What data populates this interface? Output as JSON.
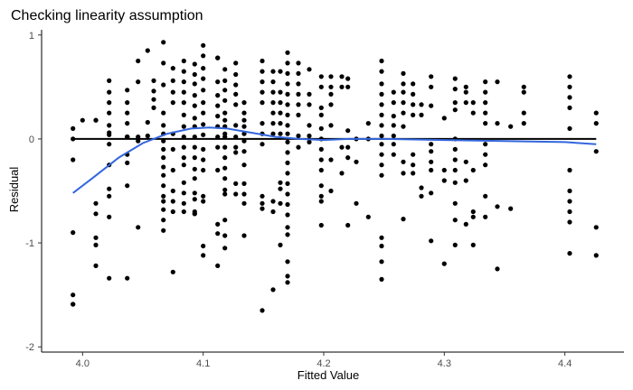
{
  "chart_data": {
    "type": "scatter",
    "title": "Checking linearity assumption",
    "xlabel": "Fitted Value",
    "ylabel": "Residual",
    "xlim": [
      3.966,
      4.449
    ],
    "ylim": [
      -2.05,
      1.05
    ],
    "xticks": [
      {
        "value": 4.0,
        "label": "4.0"
      },
      {
        "value": 4.1,
        "label": "4.1"
      },
      {
        "value": 4.2,
        "label": "4.2"
      },
      {
        "value": 4.3,
        "label": "4.3"
      },
      {
        "value": 4.4,
        "label": "4.4"
      }
    ],
    "yticks": [
      {
        "value": 1,
        "label": "1"
      },
      {
        "value": 0,
        "label": "0"
      },
      {
        "value": -1,
        "label": "-1"
      },
      {
        "value": -2,
        "label": "-2"
      }
    ],
    "grid": false,
    "reference_line": {
      "y": 0,
      "color": "#000000"
    },
    "smooth": {
      "color": "#3366dd",
      "points": [
        [
          3.992,
          -0.52
        ],
        [
          4.01,
          -0.36
        ],
        [
          4.03,
          -0.18
        ],
        [
          4.05,
          -0.04
        ],
        [
          4.07,
          0.05
        ],
        [
          4.09,
          0.1
        ],
        [
          4.105,
          0.11
        ],
        [
          4.12,
          0.1
        ],
        [
          4.14,
          0.06
        ],
        [
          4.16,
          0.02
        ],
        [
          4.18,
          0.0
        ],
        [
          4.2,
          -0.01
        ],
        [
          4.22,
          0.0
        ],
        [
          4.25,
          0.0
        ],
        [
          4.3,
          -0.01
        ],
        [
          4.35,
          -0.02
        ],
        [
          4.4,
          -0.03
        ],
        [
          4.426,
          -0.05
        ]
      ]
    },
    "x": [
      3.992,
      3.992,
      3.992,
      3.992,
      3.992,
      3.992,
      3.992,
      4.0,
      4.011,
      4.011,
      4.011,
      4.011,
      4.011,
      4.011,
      4.011,
      4.022,
      4.022,
      4.022,
      4.022,
      4.022,
      4.022,
      4.022,
      4.022,
      4.022,
      4.022,
      4.022,
      4.022,
      4.022,
      4.037,
      4.037,
      4.037,
      4.037,
      4.037,
      4.037,
      4.037,
      4.037,
      4.037,
      4.037,
      4.037,
      4.037,
      4.037,
      4.046,
      4.046,
      4.046,
      4.046,
      4.046,
      4.054,
      4.054,
      4.054,
      4.059,
      4.059,
      4.059,
      4.059,
      4.067,
      4.067,
      4.067,
      4.067,
      4.067,
      4.067,
      4.067,
      4.067,
      4.067,
      4.067,
      4.067,
      4.067,
      4.067,
      4.067,
      4.067,
      4.067,
      4.067,
      4.075,
      4.075,
      4.075,
      4.075,
      4.075,
      4.075,
      4.075,
      4.075,
      4.075,
      4.075,
      4.075,
      4.084,
      4.084,
      4.084,
      4.084,
      4.084,
      4.084,
      4.084,
      4.084,
      4.084,
      4.084,
      4.084,
      4.084,
      4.084,
      4.084,
      4.084,
      4.093,
      4.093,
      4.093,
      4.093,
      4.093,
      4.093,
      4.093,
      4.093,
      4.093,
      4.093,
      4.093,
      4.093,
      4.093,
      4.093,
      4.093,
      4.093,
      4.093,
      4.1,
      4.1,
      4.1,
      4.1,
      4.1,
      4.1,
      4.1,
      4.1,
      4.1,
      4.1,
      4.1,
      4.1,
      4.1,
      4.1,
      4.1,
      4.1,
      4.112,
      4.112,
      4.112,
      4.112,
      4.112,
      4.112,
      4.112,
      4.112,
      4.112,
      4.112,
      4.112,
      4.112,
      4.112,
      4.118,
      4.118,
      4.118,
      4.118,
      4.118,
      4.118,
      4.118,
      4.118,
      4.118,
      4.118,
      4.118,
      4.118,
      4.118,
      4.118,
      4.118,
      4.118,
      4.118,
      4.118,
      4.127,
      4.127,
      4.127,
      4.127,
      4.127,
      4.127,
      4.127,
      4.127,
      4.127,
      4.127,
      4.127,
      4.134,
      4.134,
      4.134,
      4.134,
      4.134,
      4.134,
      4.134,
      4.134,
      4.134,
      4.134,
      4.134,
      4.134,
      4.149,
      4.149,
      4.149,
      4.149,
      4.149,
      4.149,
      4.149,
      4.149,
      4.149,
      4.149,
      4.149,
      4.149,
      4.158,
      4.158,
      4.158,
      4.158,
      4.158,
      4.158,
      4.158,
      4.158,
      4.158,
      4.158,
      4.164,
      4.164,
      4.164,
      4.164,
      4.164,
      4.164,
      4.164,
      4.164,
      4.164,
      4.164,
      4.17,
      4.17,
      4.17,
      4.17,
      4.17,
      4.17,
      4.17,
      4.17,
      4.17,
      4.17,
      4.17,
      4.17,
      4.17,
      4.17,
      4.17,
      4.17,
      4.17,
      4.17,
      4.17,
      4.17,
      4.17,
      4.17,
      4.179,
      4.179,
      4.179,
      4.179,
      4.179,
      4.179,
      4.179,
      4.179,
      4.188,
      4.188,
      4.188,
      4.188,
      4.188,
      4.188,
      4.198,
      4.198,
      4.198,
      4.198,
      4.198,
      4.198,
      4.198,
      4.198,
      4.198,
      4.198,
      4.198,
      4.198,
      4.198,
      4.206,
      4.206,
      4.206,
      4.206,
      4.206,
      4.206,
      4.206,
      4.215,
      4.215,
      4.215,
      4.215,
      4.22,
      4.22,
      4.22,
      4.22,
      4.22,
      4.22,
      4.227,
      4.227,
      4.227,
      4.237,
      4.237,
      4.237,
      4.248,
      4.248,
      4.248,
      4.248,
      4.248,
      4.248,
      4.248,
      4.248,
      4.248,
      4.248,
      4.248,
      4.248,
      4.248,
      4.248,
      4.248,
      4.248,
      4.258,
      4.258,
      4.258,
      4.258,
      4.258,
      4.258,
      4.258,
      4.266,
      4.266,
      4.266,
      4.266,
      4.266,
      4.266,
      4.266,
      4.266,
      4.266,
      4.274,
      4.274,
      4.274,
      4.274,
      4.274,
      4.274,
      4.274,
      4.281,
      4.281,
      4.281,
      4.281,
      4.289,
      4.289,
      4.289,
      4.289,
      4.289,
      4.289,
      4.289,
      4.289,
      4.289,
      4.3,
      4.3,
      4.3,
      4.3,
      4.309,
      4.309,
      4.309,
      4.309,
      4.309,
      4.309,
      4.309,
      4.309,
      4.309,
      4.309,
      4.309,
      4.309,
      4.318,
      4.318,
      4.318,
      4.318,
      4.318,
      4.318,
      4.324,
      4.324,
      4.324,
      4.324,
      4.324,
      4.324,
      4.334,
      4.334,
      4.334,
      4.334,
      4.334,
      4.334,
      4.334,
      4.334,
      4.334,
      4.334,
      4.344,
      4.344,
      4.344,
      4.344,
      4.355,
      4.355,
      4.366,
      4.366,
      4.366,
      4.366,
      4.404,
      4.404,
      4.404,
      4.404,
      4.404,
      4.404,
      4.404,
      4.404,
      4.404,
      4.404,
      4.404,
      4.426,
      4.426,
      4.426,
      4.426,
      4.426
    ],
    "y": [
      0.1,
      0.0,
      -0.2,
      -0.9,
      -1.5,
      -1.59,
      -1.59,
      0.18,
      -0.62,
      -0.72,
      -0.95,
      -1.02,
      -1.22,
      0.18,
      0.18,
      0.56,
      0.45,
      0.35,
      0.25,
      0.13,
      0.06,
      -0.05,
      -0.25,
      -0.48,
      -0.55,
      -0.75,
      -1.34,
      0.04,
      0.47,
      0.35,
      0.25,
      0.15,
      -0.15,
      -0.45,
      0.02,
      -0.23,
      -1.34,
      0.02,
      0.02,
      0.02,
      0.02,
      0.75,
      0.55,
      0.02,
      -0.85,
      -0.02,
      0.85,
      0.16,
      0.03,
      0.56,
      0.46,
      0.38,
      0.3,
      0.93,
      0.73,
      0.52,
      0.25,
      0.13,
      0.05,
      -0.02,
      -0.1,
      -0.18,
      -0.27,
      -0.35,
      -0.45,
      -0.55,
      -0.6,
      -0.68,
      -0.78,
      -0.88,
      0.68,
      0.56,
      0.45,
      0.35,
      0.05,
      -0.1,
      -0.3,
      -0.5,
      -0.6,
      -0.7,
      -1.28,
      0.75,
      0.65,
      0.55,
      0.45,
      0.35,
      0.23,
      0.12,
      0.02,
      -0.08,
      -0.18,
      -0.25,
      -0.42,
      -0.52,
      -0.62,
      -0.7,
      0.72,
      0.62,
      0.53,
      0.42,
      0.32,
      0.2,
      0.12,
      0.02,
      -0.08,
      -0.18,
      -0.29,
      -0.38,
      -0.52,
      -0.58,
      -0.7,
      -0.72,
      -0.72,
      0.9,
      0.8,
      0.68,
      0.58,
      0.47,
      0.35,
      0.25,
      0.14,
      0.04,
      -0.1,
      -0.2,
      -0.3,
      -0.55,
      -0.6,
      -1.03,
      -1.12,
      0.78,
      0.55,
      0.42,
      0.32,
      0.22,
      0.12,
      0.02,
      -0.08,
      -0.3,
      -0.82,
      -0.91,
      -1.22,
      0.78,
      0.67,
      0.56,
      0.47,
      0.37,
      0.25,
      0.18,
      0.12,
      0.05,
      0.02,
      -0.08,
      -0.18,
      -0.28,
      -0.38,
      -0.49,
      -0.53,
      -0.78,
      -1.05,
      -0.93,
      0.73,
      0.62,
      0.52,
      0.43,
      0.33,
      0.13,
      0.02,
      -0.08,
      -0.13,
      -0.43,
      -0.53,
      0.35,
      0.25,
      0.18,
      0.12,
      0.05,
      -0.02,
      -0.12,
      -0.25,
      -0.43,
      -0.53,
      -0.62,
      -0.93,
      0.75,
      0.65,
      0.55,
      0.45,
      0.35,
      0.15,
      0.05,
      -0.05,
      -0.55,
      -0.62,
      -0.67,
      -1.65,
      0.65,
      0.55,
      0.45,
      0.35,
      0.25,
      0.15,
      0.05,
      -0.6,
      -0.7,
      -1.45,
      0.65,
      0.45,
      0.35,
      0.25,
      0.15,
      0.05,
      -0.42,
      -0.48,
      -0.62,
      -1.02,
      0.83,
      0.73,
      0.63,
      0.53,
      0.43,
      0.33,
      0.23,
      0.13,
      0.05,
      -0.03,
      -0.13,
      -0.23,
      -0.33,
      -0.43,
      -0.53,
      -0.63,
      -0.73,
      -0.85,
      -0.92,
      -1.18,
      -1.32,
      -1.38,
      0.73,
      0.63,
      0.53,
      0.43,
      0.33,
      0.23,
      0.03,
      -0.08,
      0.67,
      0.43,
      0.33,
      0.13,
      0.03,
      -0.03,
      0.6,
      0.5,
      0.3,
      0.23,
      0.1,
      0.0,
      -0.1,
      -0.2,
      -0.3,
      -0.45,
      -0.55,
      -0.6,
      -0.83,
      0.6,
      0.5,
      0.43,
      0.33,
      0.13,
      -0.2,
      -0.5,
      0.6,
      0.5,
      -0.08,
      -0.33,
      0.58,
      0.5,
      0.08,
      -0.08,
      -0.18,
      -0.83,
      0.0,
      -0.22,
      -0.62,
      0.15,
      0.0,
      -0.75,
      0.75,
      0.65,
      0.53,
      0.43,
      0.33,
      0.23,
      0.13,
      0.03,
      -0.05,
      -0.15,
      -0.25,
      -0.35,
      -0.95,
      -1.03,
      -1.18,
      -1.35,
      0.45,
      0.35,
      0.22,
      0.13,
      0.03,
      -0.05,
      -0.15,
      0.63,
      0.53,
      0.45,
      0.35,
      0.25,
      0.12,
      -0.22,
      -0.33,
      -0.77,
      0.53,
      0.43,
      0.33,
      0.23,
      -0.15,
      -0.25,
      -0.33,
      0.33,
      0.23,
      -0.47,
      -0.55,
      0.6,
      0.5,
      0.32,
      -0.05,
      -0.12,
      -0.22,
      -0.3,
      -0.52,
      -0.98,
      0.2,
      -0.3,
      -0.4,
      -1.2,
      0.58,
      0.48,
      0.35,
      0.28,
      0.0,
      -0.1,
      -0.2,
      -0.3,
      -0.42,
      -0.62,
      -0.78,
      -1.02,
      0.5,
      0.45,
      0.35,
      -0.22,
      -0.4,
      -0.82,
      0.35,
      0.25,
      -0.3,
      -0.7,
      -0.75,
      -1.02,
      0.55,
      0.45,
      0.35,
      0.25,
      0.15,
      -0.05,
      -0.15,
      -0.25,
      -0.55,
      -0.75,
      0.55,
      0.15,
      -0.65,
      -1.25,
      0.12,
      -0.67,
      0.5,
      0.45,
      0.25,
      0.15,
      0.6,
      0.5,
      0.4,
      0.3,
      0.1,
      -0.3,
      -0.5,
      -0.6,
      -0.7,
      -0.8,
      -1.1,
      0.25,
      0.15,
      -0.12,
      -0.85,
      -1.12
    ]
  }
}
